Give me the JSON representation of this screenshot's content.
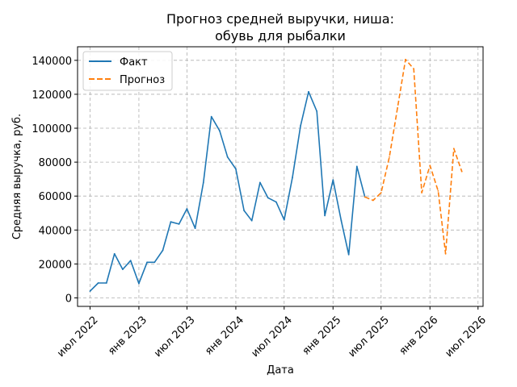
{
  "chart_data": {
    "type": "line",
    "title_lines": [
      "Прогноз средней выручки, ниша:",
      "обувь для рыбалки"
    ],
    "xlabel": "Дата",
    "ylabel": "Средняя выручка, руб.",
    "ylim": [
      -5000,
      148000
    ],
    "xlim": [
      "2022-05-15",
      "2026-07-20"
    ],
    "grid": true,
    "legend_position": "top-left",
    "x_ticks": [
      {
        "date": "2022-07-01",
        "label": "июл 2022"
      },
      {
        "date": "2023-01-01",
        "label": "янв 2023"
      },
      {
        "date": "2023-07-01",
        "label": "июл 2023"
      },
      {
        "date": "2024-01-01",
        "label": "янв 2024"
      },
      {
        "date": "2024-07-01",
        "label": "июл 2024"
      },
      {
        "date": "2025-01-01",
        "label": "янв 2025"
      },
      {
        "date": "2025-07-01",
        "label": "июл 2025"
      },
      {
        "date": "2026-01-01",
        "label": "янв 2026"
      },
      {
        "date": "2026-07-01",
        "label": "июл 2026"
      }
    ],
    "y_ticks": [
      {
        "value": 0,
        "label": "0"
      },
      {
        "value": 20000,
        "label": "20000"
      },
      {
        "value": 40000,
        "label": "40000"
      },
      {
        "value": 60000,
        "label": "60000"
      },
      {
        "value": 80000,
        "label": "80000"
      },
      {
        "value": 100000,
        "label": "100000"
      },
      {
        "value": 120000,
        "label": "120000"
      },
      {
        "value": 140000,
        "label": "140000"
      }
    ],
    "series": [
      {
        "name": "Факт",
        "color": "#1f77b4",
        "dash": "solid",
        "points": [
          [
            "2022-07-01",
            4000
          ],
          [
            "2022-08-01",
            8800
          ],
          [
            "2022-09-01",
            8800
          ],
          [
            "2022-10-01",
            26000
          ],
          [
            "2022-11-01",
            16800
          ],
          [
            "2022-12-01",
            22000
          ],
          [
            "2023-01-01",
            8500
          ],
          [
            "2023-02-01",
            21000
          ],
          [
            "2023-03-01",
            21000
          ],
          [
            "2023-04-01",
            28000
          ],
          [
            "2023-05-01",
            44800
          ],
          [
            "2023-06-01",
            43500
          ],
          [
            "2023-07-01",
            52500
          ],
          [
            "2023-08-01",
            41000
          ],
          [
            "2023-09-01",
            68000
          ],
          [
            "2023-10-01",
            106800
          ],
          [
            "2023-11-01",
            98500
          ],
          [
            "2023-12-01",
            83000
          ],
          [
            "2024-01-01",
            76000
          ],
          [
            "2024-02-01",
            51500
          ],
          [
            "2024-03-01",
            45500
          ],
          [
            "2024-04-01",
            68000
          ],
          [
            "2024-05-01",
            59000
          ],
          [
            "2024-06-01",
            56500
          ],
          [
            "2024-07-01",
            46000
          ],
          [
            "2024-08-01",
            71000
          ],
          [
            "2024-09-01",
            101500
          ],
          [
            "2024-10-01",
            121500
          ],
          [
            "2024-11-01",
            110000
          ],
          [
            "2024-12-01",
            48500
          ],
          [
            "2025-01-01",
            69500
          ],
          [
            "2025-02-01",
            45500
          ],
          [
            "2025-03-01",
            25500
          ],
          [
            "2025-04-01",
            77500
          ],
          [
            "2025-05-01",
            59500
          ]
        ]
      },
      {
        "name": "Прогноз",
        "color": "#ff7f0e",
        "dash": "dashed",
        "points": [
          [
            "2025-05-01",
            59500
          ],
          [
            "2025-06-01",
            57500
          ],
          [
            "2025-07-01",
            62000
          ],
          [
            "2025-08-01",
            83000
          ],
          [
            "2025-09-01",
            112000
          ],
          [
            "2025-10-01",
            140500
          ],
          [
            "2025-11-01",
            135000
          ],
          [
            "2025-12-01",
            62000
          ],
          [
            "2026-01-01",
            78000
          ],
          [
            "2026-02-01",
            63000
          ],
          [
            "2026-03-01",
            26000
          ],
          [
            "2026-04-01",
            88000
          ],
          [
            "2026-05-01",
            74500
          ]
        ]
      }
    ]
  }
}
